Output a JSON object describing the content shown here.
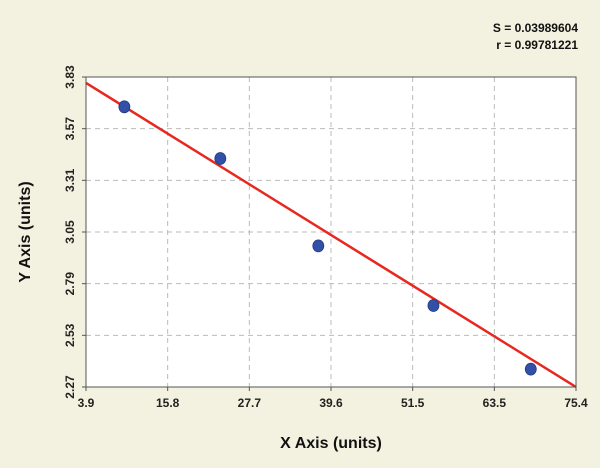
{
  "stats": {
    "s_text": "S = 0.03989604",
    "r_text": "r = 0.99781221"
  },
  "chart_data": {
    "type": "scatter",
    "xlabel": "X Axis (units)",
    "ylabel": "Y Axis (units)",
    "xlim": [
      3.9,
      75.4
    ],
    "ylim": [
      2.27,
      3.83
    ],
    "x_ticks": [
      "3.9",
      "15.8",
      "27.7",
      "39.6",
      "51.5",
      "63.5",
      "75.4"
    ],
    "y_ticks": [
      "2.27",
      "2.53",
      "2.79",
      "3.05",
      "3.31",
      "3.57",
      "3.83"
    ],
    "grid": true,
    "points": [
      {
        "x": 9.5,
        "y": 3.68
      },
      {
        "x": 23.5,
        "y": 3.42
      },
      {
        "x": 37.8,
        "y": 2.98
      },
      {
        "x": 54.6,
        "y": 2.68
      },
      {
        "x": 68.8,
        "y": 2.36
      }
    ],
    "fit_line": {
      "start": [
        3.9,
        3.8
      ],
      "end": [
        75.4,
        2.27
      ]
    },
    "colors": {
      "background": "#f3f1df",
      "plot_bg": "#ffffff",
      "points": "#3350a8",
      "fit_line": "#e8281e",
      "grid": "#bbbbbb"
    }
  }
}
